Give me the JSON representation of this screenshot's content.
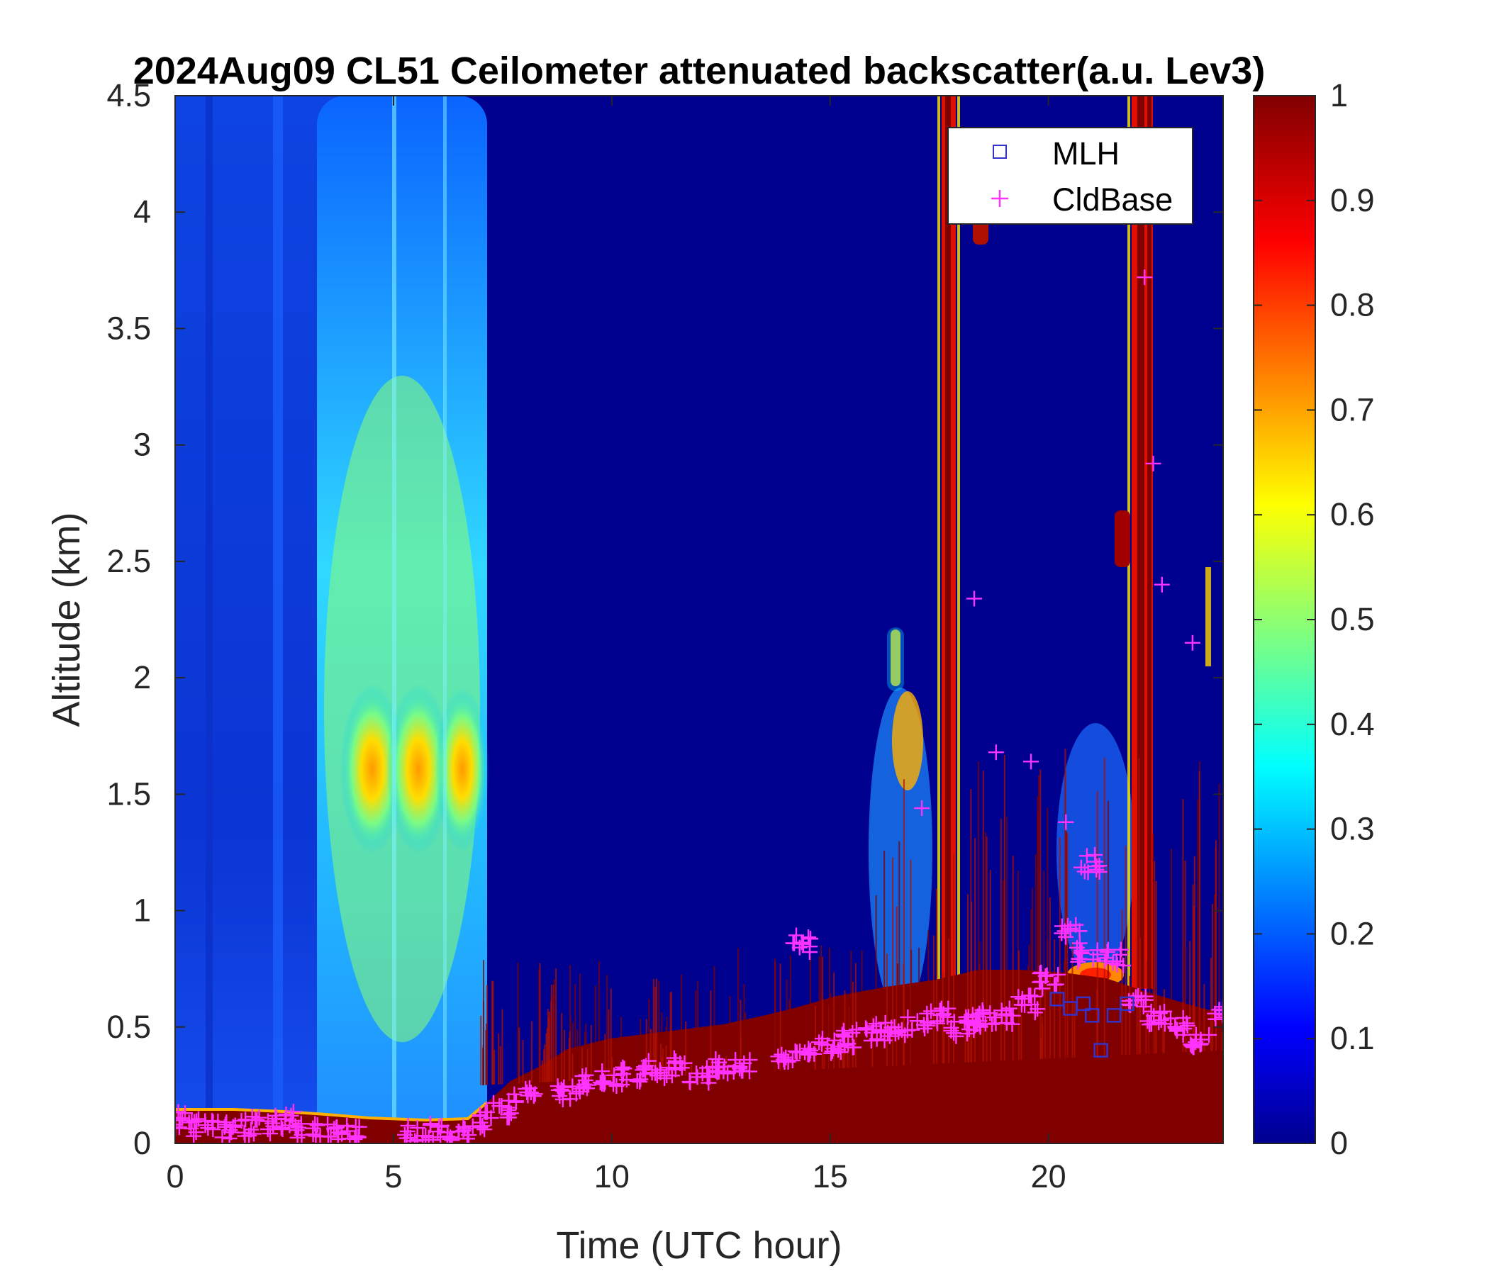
{
  "chart_data": {
    "type": "heatmap",
    "title": "2024Aug09 CL51 Ceilometer attenuated backscatter(a.u. Lev3)",
    "xlabel": "Time (UTC hour)",
    "ylabel": "Altitude (km)",
    "xlim": [
      0,
      24
    ],
    "ylim": [
      0,
      4.5
    ],
    "x_ticks": [
      "0",
      "5",
      "10",
      "15",
      "20"
    ],
    "y_ticks": [
      "0",
      "0.5",
      "1",
      "1.5",
      "2",
      "2.5",
      "3",
      "3.5",
      "4",
      "4.5"
    ],
    "colorbar": {
      "colormap": "jet",
      "range": [
        0,
        1
      ],
      "ticks": [
        "0",
        "0.1",
        "0.2",
        "0.3",
        "0.4",
        "0.5",
        "0.6",
        "0.7",
        "0.8",
        "0.9",
        "1"
      ]
    },
    "legend": {
      "placement": "top-right",
      "entries": [
        {
          "label": "MLH",
          "marker": "square",
          "color": "#3333cc"
        },
        {
          "label": "CldBase",
          "marker": "plus",
          "color": "#ff33ff"
        }
      ]
    },
    "field_features": [
      {
        "kind": "aerosol-plume",
        "t_start": 3.6,
        "t_end": 7.2,
        "peak_alt_km": 1.65,
        "peak_value": 0.75
      },
      {
        "kind": "thin-cloud-streak",
        "t_start": 17.5,
        "t_end": 17.9,
        "alt_range_km": [
          0.6,
          4.5
        ],
        "value": 1.0
      },
      {
        "kind": "thin-cloud-streak",
        "t_start": 21.7,
        "t_end": 22.4,
        "alt_range_km": [
          0.6,
          4.5
        ],
        "value": 1.0
      }
    ],
    "series": [
      {
        "name": "CldBase",
        "color": "#ff33ff",
        "x": [
          0.0,
          0.5,
          1.0,
          1.5,
          2.0,
          2.5,
          3.0,
          3.5,
          4.0,
          5.5,
          6.0,
          6.5,
          7.0,
          7.5,
          8.0,
          9.0,
          9.5,
          10.0,
          10.5,
          11.0,
          11.5,
          12.0,
          12.5,
          13.0,
          14.0,
          14.5,
          15.0,
          15.5,
          16.0,
          16.5,
          17.0,
          17.5,
          18.0,
          18.3,
          18.5,
          19.0,
          19.5,
          20.0,
          20.5,
          21.0,
          21.5,
          22.0,
          22.5,
          23.0,
          23.5,
          24.0,
          14.4,
          17.1,
          18.3,
          18.8,
          19.6,
          20.4,
          20.9,
          22.2,
          22.4,
          22.6,
          23.3
        ],
        "y": [
          0.1,
          0.07,
          0.06,
          0.07,
          0.08,
          0.1,
          0.06,
          0.05,
          0.05,
          0.05,
          0.05,
          0.05,
          0.1,
          0.15,
          0.2,
          0.22,
          0.26,
          0.28,
          0.3,
          0.32,
          0.33,
          0.3,
          0.33,
          0.32,
          0.38,
          0.4,
          0.42,
          0.45,
          0.48,
          0.5,
          0.52,
          0.55,
          0.5,
          0.52,
          0.55,
          0.55,
          0.6,
          0.7,
          0.9,
          1.2,
          0.8,
          0.6,
          0.55,
          0.5,
          0.45,
          0.55,
          0.86,
          1.44,
          2.34,
          1.68,
          1.64,
          1.38,
          0.82,
          3.72,
          2.92,
          2.4,
          2.15
        ]
      },
      {
        "name": "MLH",
        "color": "#3333cc",
        "x": [
          20.2,
          20.5,
          20.8,
          21.0,
          21.2,
          21.5,
          21.8
        ],
        "y": [
          0.62,
          0.58,
          0.6,
          0.55,
          0.4,
          0.55,
          0.6
        ]
      }
    ]
  }
}
